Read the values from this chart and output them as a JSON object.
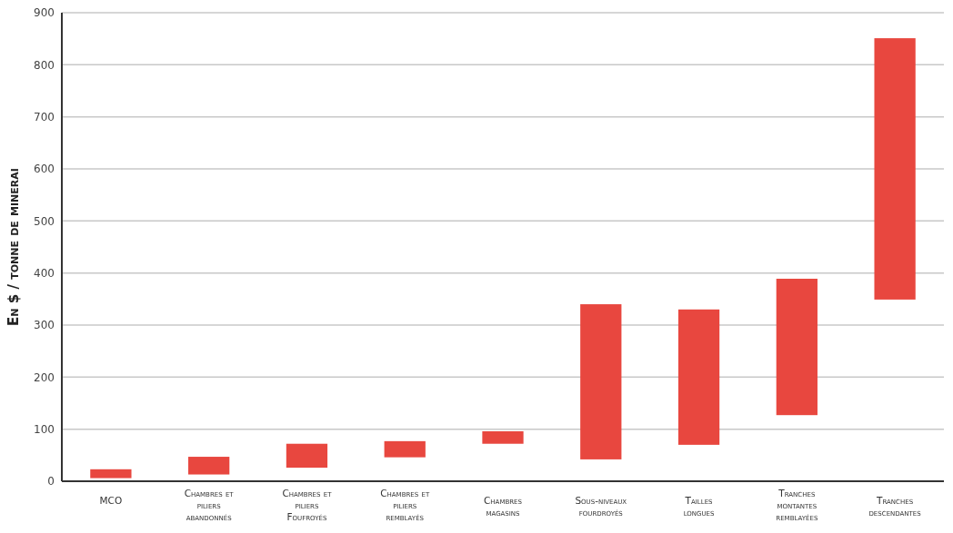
{
  "chart_data": {
    "type": "bar",
    "ylabel": "En $ / tonne de minerai",
    "categories": [
      "MCO",
      "Chambres et piliers abandonnés",
      "Chambres et piliers Foufroyés",
      "Chambres et piliers remblayés",
      "Chambres magasins",
      "Sous-niveaux fourdroyés",
      "Tailles longues",
      "Tranches montantes remblayées",
      "Tranches descendantes"
    ],
    "base": [
      6,
      13,
      26,
      46,
      72,
      42,
      70,
      127,
      349
    ],
    "values": [
      17,
      34,
      46,
      31,
      24,
      298,
      260,
      262,
      502
    ],
    "color": "#e8473f",
    "ylim": [
      0,
      900
    ],
    "yticks": [
      0,
      100,
      200,
      300,
      400,
      500,
      600,
      700,
      800,
      900
    ],
    "grid": "y"
  }
}
